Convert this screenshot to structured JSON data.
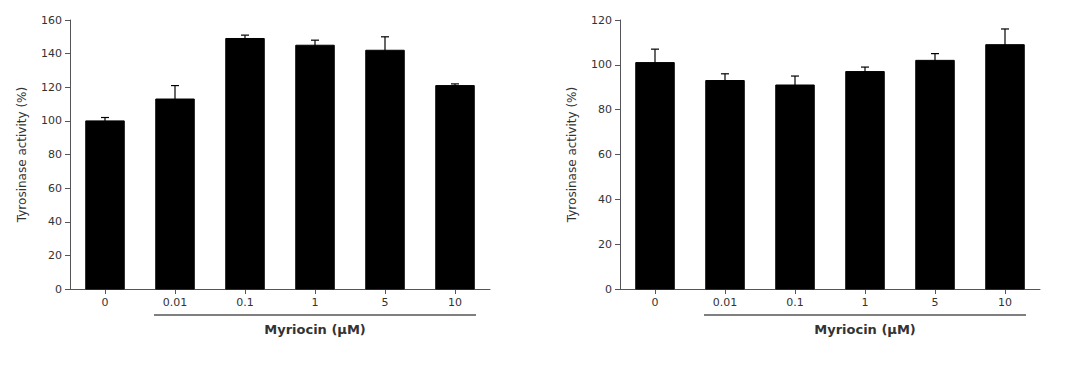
{
  "chart_data": [
    {
      "type": "bar",
      "categories": [
        "0",
        "0.01",
        "0.1",
        "1",
        "5",
        "10"
      ],
      "values": [
        100,
        113,
        149,
        145,
        142,
        121
      ],
      "errors": [
        2,
        8,
        2,
        3,
        8,
        1
      ],
      "ylabel": "Tyrosinase activity (%)",
      "xlabel": "Myriocin (μM)",
      "ylim": [
        0,
        160
      ],
      "yticks": [
        0,
        20,
        40,
        60,
        80,
        100,
        120,
        140,
        160
      ],
      "color": "#000000",
      "grid": false
    },
    {
      "type": "bar",
      "categories": [
        "0",
        "0.01",
        "0.1",
        "1",
        "5",
        "10"
      ],
      "values": [
        101,
        93,
        91,
        97,
        102,
        109
      ],
      "errors": [
        6,
        3,
        4,
        2,
        3,
        7
      ],
      "ylabel": "Tyrosinase activity (%)",
      "xlabel": "Myriocin (μM)",
      "ylim": [
        0,
        120
      ],
      "yticks": [
        0,
        20,
        40,
        60,
        80,
        100,
        120
      ],
      "color": "#000000",
      "grid": false
    }
  ]
}
